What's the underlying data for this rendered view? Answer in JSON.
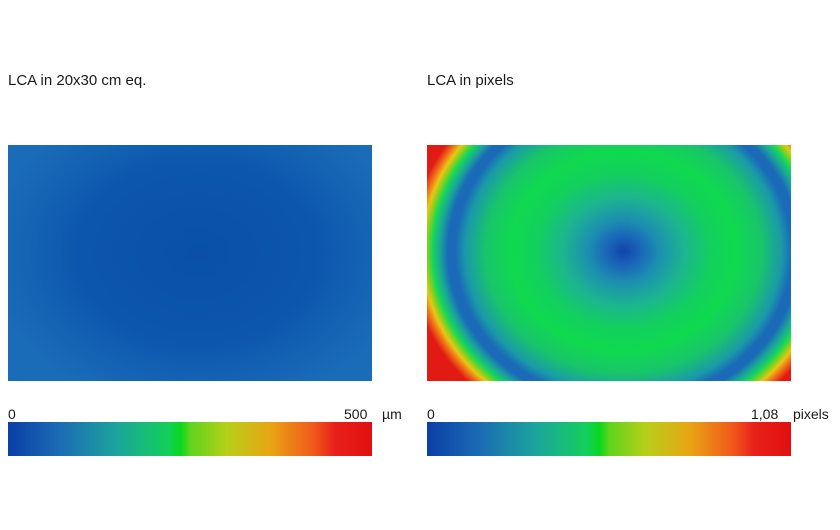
{
  "chart_data": [
    {
      "type": "heatmap",
      "title": "LCA in 20x30 cm eq.",
      "colorbar": {
        "min_label": "0",
        "max_label": "500",
        "unit": "µm",
        "range": [
          0,
          500
        ]
      },
      "colormap": [
        "#0a3fa5",
        "#1ca59c",
        "#0ad71e",
        "#b6cf18",
        "#f0581a",
        "#e01010"
      ]
    },
    {
      "type": "heatmap",
      "title": "LCA in pixels",
      "colorbar": {
        "min_label": "0",
        "max_label": "1,08",
        "unit": "pixels",
        "range": [
          0,
          1.08
        ]
      },
      "colormap": [
        "#0a3fa5",
        "#1ca59c",
        "#0ad71e",
        "#b6cf18",
        "#f0581a",
        "#e01010"
      ]
    }
  ]
}
